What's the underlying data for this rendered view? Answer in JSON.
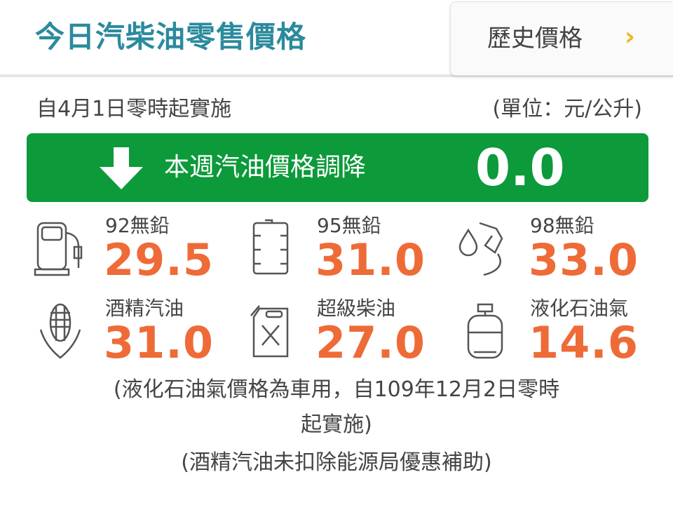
{
  "header": {
    "title": "今日汽柴油零售價格",
    "history_button": "歷史價格",
    "chevron": "›"
  },
  "effective_date": "自4月1日零時起實施",
  "unit": "(單位：元/公升)",
  "banner": {
    "text": "本週汽油價格調降",
    "value": "0.0",
    "icon": "arrow-down-icon",
    "color": "#0c9a3a"
  },
  "price_color": "#ee6b37",
  "prices": [
    {
      "label": "92無鉛",
      "value": "29.5",
      "icon": "fuel-pump-icon"
    },
    {
      "label": "95無鉛",
      "value": "31.0",
      "icon": "oil-barrel-icon"
    },
    {
      "label": "98無鉛",
      "value": "33.0",
      "icon": "fuel-nozzle-icon"
    },
    {
      "label": "酒精汽油",
      "value": "31.0",
      "icon": "corn-icon"
    },
    {
      "label": "超級柴油",
      "value": "27.0",
      "icon": "jerry-can-icon"
    },
    {
      "label": "液化石油氣",
      "value": "14.6",
      "icon": "gas-cylinder-icon"
    }
  ],
  "notes": [
    "(液化石油氣價格為車用，自109年12月2日零時",
    "起實施)",
    "(酒精汽油未扣除能源局優惠補助)"
  ]
}
